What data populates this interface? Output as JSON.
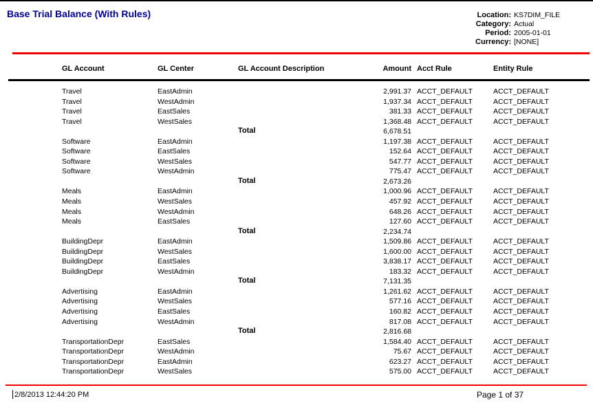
{
  "page": {
    "title": "Base Trial Balance (With Rules)",
    "footer": {
      "timestamp": "2/8/2013 12:44:20 PM",
      "page_label": "Page 1 of 37"
    }
  },
  "meta": {
    "fields": [
      {
        "label": "Location:",
        "value": "KS7DIM_FILE"
      },
      {
        "label": "Category:",
        "value": "Actual"
      },
      {
        "label": "Period:",
        "value": "2005-01-01"
      },
      {
        "label": "Currency:",
        "value": "[NONE]"
      }
    ]
  },
  "table": {
    "columns": [
      "GL Account",
      "GL Center",
      "GL Account Description",
      "Amount",
      "Acct Rule",
      "Entity Rule"
    ],
    "total_label": "Total",
    "sections": [
      {
        "gl_account": "Travel",
        "rows": [
          {
            "account": "Travel",
            "center": "EastAdmin",
            "desc": "",
            "amount": "2,991.37",
            "acct_rule": "ACCT_DEFAULT",
            "entity_rule": "ACCT_DEFAULT"
          },
          {
            "account": "Travel",
            "center": "WestAdmin",
            "desc": "",
            "amount": "1,937.34",
            "acct_rule": "ACCT_DEFAULT",
            "entity_rule": "ACCT_DEFAULT"
          },
          {
            "account": "Travel",
            "center": "EastSales",
            "desc": "",
            "amount": "381.33",
            "acct_rule": "ACCT_DEFAULT",
            "entity_rule": "ACCT_DEFAULT"
          },
          {
            "account": "Travel",
            "center": "WestSales",
            "desc": "",
            "amount": "1,368.48",
            "acct_rule": "ACCT_DEFAULT",
            "entity_rule": "ACCT_DEFAULT"
          }
        ],
        "total": "6,678.51"
      },
      {
        "gl_account": "Software",
        "rows": [
          {
            "account": "Software",
            "center": "EastAdmin",
            "desc": "",
            "amount": "1,197.38",
            "acct_rule": "ACCT_DEFAULT",
            "entity_rule": "ACCT_DEFAULT"
          },
          {
            "account": "Software",
            "center": "EastSales",
            "desc": "",
            "amount": "152.64",
            "acct_rule": "ACCT_DEFAULT",
            "entity_rule": "ACCT_DEFAULT"
          },
          {
            "account": "Software",
            "center": "WestSales",
            "desc": "",
            "amount": "547.77",
            "acct_rule": "ACCT_DEFAULT",
            "entity_rule": "ACCT_DEFAULT"
          },
          {
            "account": "Software",
            "center": "WestAdmin",
            "desc": "",
            "amount": "775.47",
            "acct_rule": "ACCT_DEFAULT",
            "entity_rule": "ACCT_DEFAULT"
          }
        ],
        "total": "2,673.26"
      },
      {
        "gl_account": "Meals",
        "rows": [
          {
            "account": "Meals",
            "center": "EastAdmin",
            "desc": "",
            "amount": "1,000.96",
            "acct_rule": "ACCT_DEFAULT",
            "entity_rule": "ACCT_DEFAULT"
          },
          {
            "account": "Meals",
            "center": "WestSales",
            "desc": "",
            "amount": "457.92",
            "acct_rule": "ACCT_DEFAULT",
            "entity_rule": "ACCT_DEFAULT"
          },
          {
            "account": "Meals",
            "center": "WestAdmin",
            "desc": "",
            "amount": "648.26",
            "acct_rule": "ACCT_DEFAULT",
            "entity_rule": "ACCT_DEFAULT"
          },
          {
            "account": "Meals",
            "center": "EastSales",
            "desc": "",
            "amount": "127.60",
            "acct_rule": "ACCT_DEFAULT",
            "entity_rule": "ACCT_DEFAULT"
          }
        ],
        "total": "2,234.74"
      },
      {
        "gl_account": "BuildingDepr",
        "rows": [
          {
            "account": "BuildingDepr",
            "center": "EastAdmin",
            "desc": "",
            "amount": "1,509.86",
            "acct_rule": "ACCT_DEFAULT",
            "entity_rule": "ACCT_DEFAULT"
          },
          {
            "account": "BuildingDepr",
            "center": "WestSales",
            "desc": "",
            "amount": "1,600.00",
            "acct_rule": "ACCT_DEFAULT",
            "entity_rule": "ACCT_DEFAULT"
          },
          {
            "account": "BuildingDepr",
            "center": "EastSales",
            "desc": "",
            "amount": "3,838.17",
            "acct_rule": "ACCT_DEFAULT",
            "entity_rule": "ACCT_DEFAULT"
          },
          {
            "account": "BuildingDepr",
            "center": "WestAdmin",
            "desc": "",
            "amount": "183.32",
            "acct_rule": "ACCT_DEFAULT",
            "entity_rule": "ACCT_DEFAULT"
          }
        ],
        "total": "7,131.35"
      },
      {
        "gl_account": "Advertising",
        "rows": [
          {
            "account": "Advertising",
            "center": "EastAdmin",
            "desc": "",
            "amount": "1,261.62",
            "acct_rule": "ACCT_DEFAULT",
            "entity_rule": "ACCT_DEFAULT"
          },
          {
            "account": "Advertising",
            "center": "WestSales",
            "desc": "",
            "amount": "577.16",
            "acct_rule": "ACCT_DEFAULT",
            "entity_rule": "ACCT_DEFAULT"
          },
          {
            "account": "Advertising",
            "center": "EastSales",
            "desc": "",
            "amount": "160.82",
            "acct_rule": "ACCT_DEFAULT",
            "entity_rule": "ACCT_DEFAULT"
          },
          {
            "account": "Advertising",
            "center": "WestAdmin",
            "desc": "",
            "amount": "817.08",
            "acct_rule": "ACCT_DEFAULT",
            "entity_rule": "ACCT_DEFAULT"
          }
        ],
        "total": "2,816.68"
      },
      {
        "gl_account": "TransportationDepr",
        "rows": [
          {
            "account": "TransportationDepr",
            "center": "EastSales",
            "desc": "",
            "amount": "1,584.40",
            "acct_rule": "ACCT_DEFAULT",
            "entity_rule": "ACCT_DEFAULT"
          },
          {
            "account": "TransportationDepr",
            "center": "WestAdmin",
            "desc": "",
            "amount": "75.67",
            "acct_rule": "ACCT_DEFAULT",
            "entity_rule": "ACCT_DEFAULT"
          },
          {
            "account": "TransportationDepr",
            "center": "EastAdmin",
            "desc": "",
            "amount": "623.27",
            "acct_rule": "ACCT_DEFAULT",
            "entity_rule": "ACCT_DEFAULT"
          },
          {
            "account": "TransportationDepr",
            "center": "WestSales",
            "desc": "",
            "amount": "575.00",
            "acct_rule": "ACCT_DEFAULT",
            "entity_rule": "ACCT_DEFAULT"
          }
        ],
        "total": null
      }
    ]
  },
  "colors": {
    "title_blue": "#000099",
    "rule_red": "#ee0000",
    "rule_black": "#000000"
  }
}
